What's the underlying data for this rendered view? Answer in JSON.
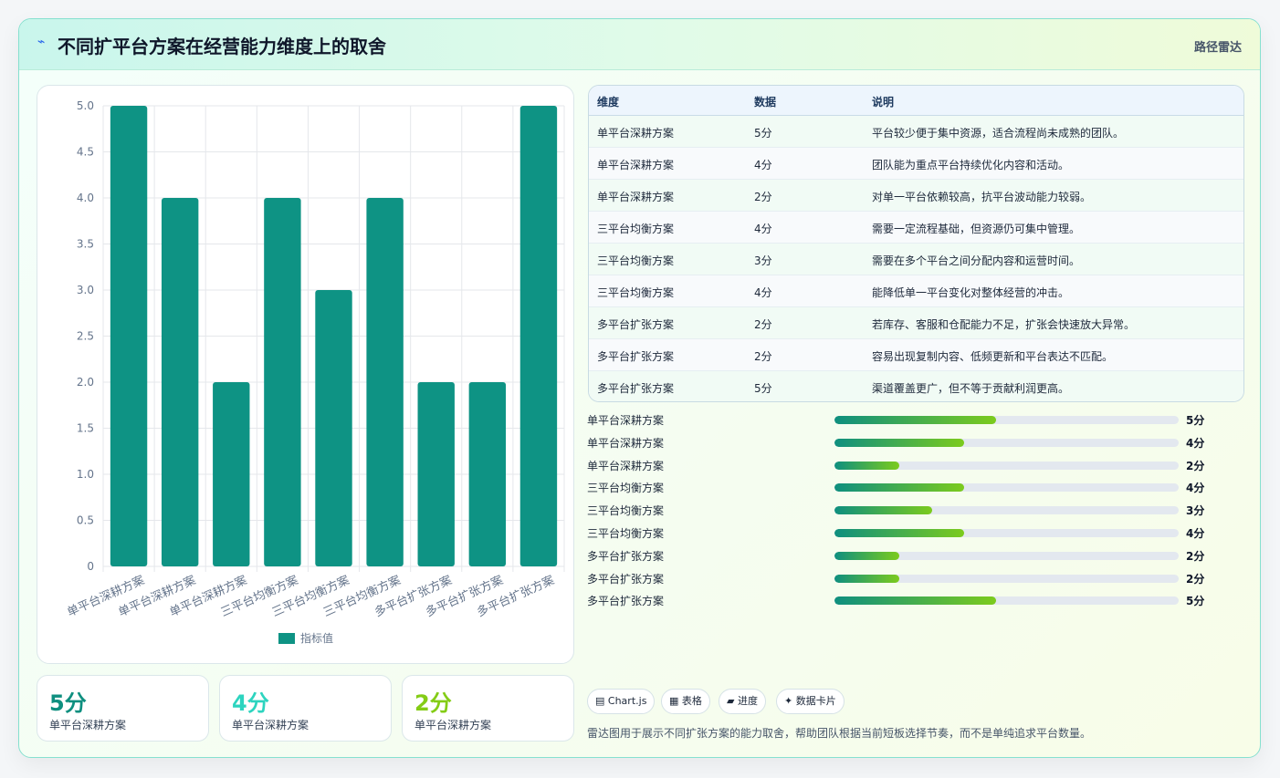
{
  "header": {
    "icon": "sparkle-icon",
    "title": "不同扩平台方案在经营能力维度上的取舍",
    "tag": "路径雷达"
  },
  "chart_data": {
    "type": "bar",
    "categories": [
      "单平台深耕方案",
      "单平台深耕方案",
      "单平台深耕方案",
      "三平台均衡方案",
      "三平台均衡方案",
      "三平台均衡方案",
      "多平台扩张方案",
      "多平台扩张方案",
      "多平台扩张方案"
    ],
    "series": [
      {
        "name": "指标值",
        "values": [
          5,
          4,
          2,
          4,
          3,
          4,
          2,
          2,
          5
        ],
        "color": "#0e9384"
      }
    ],
    "ylim": [
      0,
      5
    ],
    "yticks": [
      "0",
      "0.5",
      "1.0",
      "1.5",
      "2.0",
      "2.5",
      "3.0",
      "3.5",
      "4.0",
      "4.5",
      "5.0"
    ],
    "grid": true,
    "legend_position": "bottom"
  },
  "kpis": [
    {
      "value": "5分",
      "label": "单平台深耕方案",
      "color": "#0e8f7f"
    },
    {
      "value": "4分",
      "label": "单平台深耕方案",
      "color": "#2dd4bf"
    },
    {
      "value": "2分",
      "label": "单平台深耕方案",
      "color": "#84cc16"
    }
  ],
  "table": {
    "headers": [
      "维度",
      "数据",
      "说明"
    ],
    "rows": [
      [
        "单平台深耕方案",
        "5分",
        "平台较少便于集中资源，适合流程尚未成熟的团队。"
      ],
      [
        "单平台深耕方案",
        "4分",
        "团队能为重点平台持续优化内容和活动。"
      ],
      [
        "单平台深耕方案",
        "2分",
        "对单一平台依赖较高，抗平台波动能力较弱。"
      ],
      [
        "三平台均衡方案",
        "4分",
        "需要一定流程基础，但资源仍可集中管理。"
      ],
      [
        "三平台均衡方案",
        "3分",
        "需要在多个平台之间分配内容和运营时间。"
      ],
      [
        "三平台均衡方案",
        "4分",
        "能降低单一平台变化对整体经营的冲击。"
      ],
      [
        "多平台扩张方案",
        "2分",
        "若库存、客服和仓配能力不足，扩张会快速放大异常。"
      ],
      [
        "多平台扩张方案",
        "2分",
        "容易出现复制内容、低频更新和平台表达不匹配。"
      ],
      [
        "多平台扩张方案",
        "5分",
        "渠道覆盖更广，但不等于贡献利润更高。"
      ]
    ]
  },
  "progress": [
    {
      "name": "单平台深耕方案",
      "score": "5分",
      "fraction": 0.47
    },
    {
      "name": "单平台深耕方案",
      "score": "4分",
      "fraction": 0.376
    },
    {
      "name": "单平台深耕方案",
      "score": "2分",
      "fraction": 0.188
    },
    {
      "name": "三平台均衡方案",
      "score": "4分",
      "fraction": 0.376
    },
    {
      "name": "三平台均衡方案",
      "score": "3分",
      "fraction": 0.283
    },
    {
      "name": "三平台均衡方案",
      "score": "4分",
      "fraction": 0.376
    },
    {
      "name": "多平台扩张方案",
      "score": "2分",
      "fraction": 0.188
    },
    {
      "name": "多平台扩张方案",
      "score": "2分",
      "fraction": 0.188
    },
    {
      "name": "多平台扩张方案",
      "score": "5分",
      "fraction": 0.47
    }
  ],
  "chips": [
    {
      "icon": "chart-icon",
      "glyph": "▤",
      "label": "Chart.js"
    },
    {
      "icon": "table-icon",
      "glyph": "▦",
      "label": "表格"
    },
    {
      "icon": "progress-icon",
      "glyph": "▰",
      "label": "进度"
    },
    {
      "icon": "card-icon",
      "glyph": "✦",
      "label": "数据卡片"
    }
  ],
  "note": "雷达图用于展示不同扩张方案的能力取舍，帮助团队根据当前短板选择节奏，而不是单纯追求平台数量。"
}
